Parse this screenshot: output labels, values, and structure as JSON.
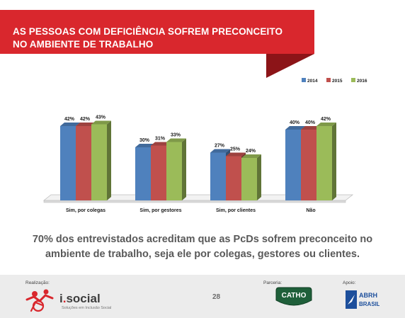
{
  "slide": {
    "title": "AS PESSOAS COM DEFICIÊNCIA SOFREM PRECONCEITO\nNO AMBIENTE DE TRABALHO",
    "caption": "70% dos entrevistados acreditam que as PcDs sofrem preconceito no ambiente de trabalho, seja ele por colegas, gestores ou clientes.",
    "colors": {
      "banner": "#d9272d",
      "banner_fold": "#8c1418"
    }
  },
  "chart_data": {
    "type": "bar",
    "categories": [
      "Sim, por colegas",
      "Sim, por gestores",
      "Sim, por clientes",
      "Não"
    ],
    "series": [
      {
        "name": "2014",
        "values": [
          42,
          30,
          27,
          40
        ],
        "labels": [
          "42%",
          "30%",
          "27%",
          "40%"
        ],
        "color": "#4f81bd"
      },
      {
        "name": "2015",
        "values": [
          42,
          31,
          25,
          40
        ],
        "labels": [
          "42%",
          "31%",
          "25%",
          "40%"
        ],
        "color": "#c0504d"
      },
      {
        "name": "2016",
        "values": [
          43,
          33,
          24,
          42
        ],
        "labels": [
          "43%",
          "33%",
          "24%",
          "42%"
        ],
        "color": "#9bbb59"
      }
    ],
    "ylim": [
      0,
      50
    ],
    "legend_position": "top-right",
    "grid": false,
    "style": "3d-columns"
  },
  "footer": {
    "realizacao_label": "Realização:",
    "isocial_name_pre": "i",
    "isocial_name_dot": ".",
    "isocial_name_post": "social",
    "isocial_tagline": "Soluções em Inclusão Social",
    "page_number": "28",
    "parceria_label": "Parceria:",
    "catho_text": "CATHO",
    "apoio_label": "Apoio:",
    "abrh_line1": "ABRH",
    "abrh_line2": "BRASIL"
  }
}
